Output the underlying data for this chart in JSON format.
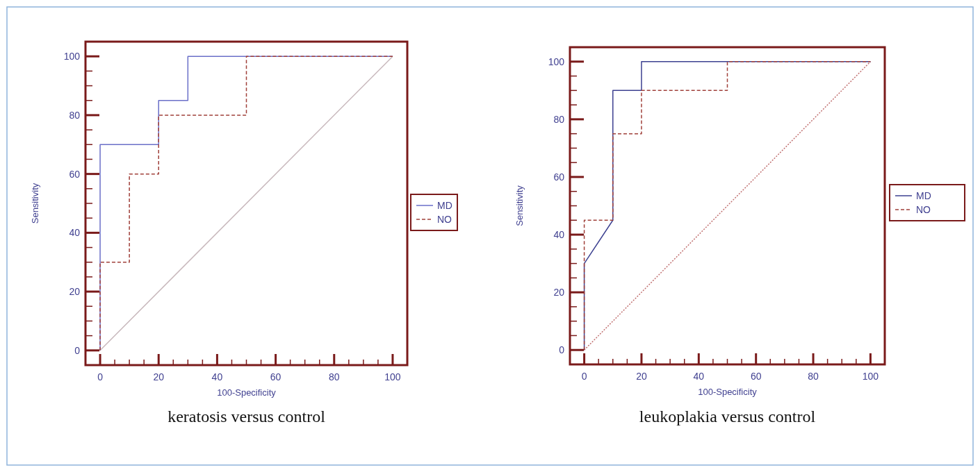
{
  "chart_data": [
    {
      "type": "line",
      "title": "keratosis versus control",
      "xlabel": "100-Specificity",
      "ylabel": "Sensitivity",
      "xlim": [
        -5,
        105
      ],
      "ylim": [
        -5,
        105
      ],
      "xticks": [
        0,
        {
          "value": 5,
          "label": null
        },
        {
          "value": 10,
          "label": null
        },
        {
          "value": 15,
          "label": null
        },
        20,
        {
          "value": 25,
          "label": null
        },
        {
          "value": 30,
          "label": null
        },
        {
          "value": 35,
          "label": null
        },
        40,
        {
          "value": 45,
          "label": null
        },
        {
          "value": 50,
          "label": null
        },
        {
          "value": 55,
          "label": null
        },
        60,
        {
          "value": 65,
          "label": null
        },
        {
          "value": 70,
          "label": null
        },
        {
          "value": 75,
          "label": null
        },
        80,
        {
          "value": 85,
          "label": null
        },
        {
          "value": 90,
          "label": null
        },
        {
          "value": 95,
          "label": null
        },
        100
      ],
      "yticks": [
        0,
        {
          "value": 5,
          "label": null
        },
        {
          "value": 10,
          "label": null
        },
        {
          "value": 15,
          "label": null
        },
        20,
        {
          "value": 25,
          "label": null
        },
        {
          "value": 30,
          "label": null
        },
        {
          "value": 35,
          "label": null
        },
        40,
        {
          "value": 45,
          "label": null
        },
        {
          "value": 50,
          "label": null
        },
        {
          "value": 55,
          "label": null
        },
        60,
        {
          "value": 65,
          "label": null
        },
        {
          "value": 70,
          "label": null
        },
        {
          "value": 75,
          "label": null
        },
        80,
        {
          "value": 85,
          "label": null
        },
        {
          "value": 90,
          "label": null
        },
        {
          "value": 95,
          "label": null
        },
        100
      ],
      "grid": false,
      "legend": "right",
      "marker": "none",
      "series": [
        {
          "color": "#c8b8bc",
          "line_style": "solid",
          "x": [
            0,
            100
          ],
          "values": [
            0,
            100
          ]
        },
        {
          "name": "MD",
          "color": "#6a6fc8",
          "line_style": "solid",
          "x": [
            0,
            0,
            20,
            20,
            30,
            30,
            100
          ],
          "values": [
            0,
            70,
            70,
            85,
            85,
            100,
            100
          ]
        },
        {
          "name": "NO",
          "color": "#a0403a",
          "line_style": "dashed",
          "x": [
            0,
            0,
            10,
            10,
            20,
            20,
            50,
            50,
            100
          ],
          "values": [
            0,
            30,
            30,
            60,
            60,
            80,
            80,
            100,
            100
          ]
        }
      ]
    },
    {
      "type": "line",
      "title": "leukoplakia versus control",
      "xlabel": "100-Specificity",
      "ylabel": "Sensitivity",
      "xlim": [
        -5,
        105
      ],
      "ylim": [
        -5,
        105
      ],
      "xticks": [
        0,
        {
          "value": 5,
          "label": null
        },
        {
          "value": 10,
          "label": null
        },
        {
          "value": 15,
          "label": null
        },
        20,
        {
          "value": 25,
          "label": null
        },
        {
          "value": 30,
          "label": null
        },
        {
          "value": 35,
          "label": null
        },
        40,
        {
          "value": 45,
          "label": null
        },
        {
          "value": 50,
          "label": null
        },
        {
          "value": 55,
          "label": null
        },
        60,
        {
          "value": 65,
          "label": null
        },
        {
          "value": 70,
          "label": null
        },
        {
          "value": 75,
          "label": null
        },
        80,
        {
          "value": 85,
          "label": null
        },
        {
          "value": 90,
          "label": null
        },
        {
          "value": 95,
          "label": null
        },
        100
      ],
      "yticks": [
        0,
        {
          "value": 5,
          "label": null
        },
        {
          "value": 10,
          "label": null
        },
        {
          "value": 15,
          "label": null
        },
        20,
        {
          "value": 25,
          "label": null
        },
        {
          "value": 30,
          "label": null
        },
        {
          "value": 35,
          "label": null
        },
        40,
        {
          "value": 45,
          "label": null
        },
        {
          "value": 50,
          "label": null
        },
        {
          "value": 55,
          "label": null
        },
        60,
        {
          "value": 65,
          "label": null
        },
        {
          "value": 70,
          "label": null
        },
        {
          "value": 75,
          "label": null
        },
        80,
        {
          "value": 85,
          "label": null
        },
        {
          "value": 90,
          "label": null
        },
        {
          "value": 95,
          "label": null
        },
        100
      ],
      "grid": false,
      "legend": "right",
      "marker": "none",
      "series": [
        {
          "color": "#c07070",
          "line_style": "dotted",
          "x": [
            0,
            100
          ],
          "values": [
            0,
            100
          ]
        },
        {
          "name": "MD",
          "color": "#3c4090",
          "line_style": "solid",
          "x": [
            0,
            0,
            10,
            10,
            20,
            20,
            100
          ],
          "values": [
            0,
            30,
            45,
            90,
            90,
            100,
            100
          ]
        },
        {
          "name": "NO",
          "color": "#a0403a",
          "line_style": "dashed",
          "x": [
            0,
            0,
            10,
            10,
            20,
            20,
            50,
            50,
            100
          ],
          "values": [
            0,
            45,
            45,
            75,
            75,
            90,
            90,
            100,
            100
          ]
        }
      ]
    }
  ]
}
